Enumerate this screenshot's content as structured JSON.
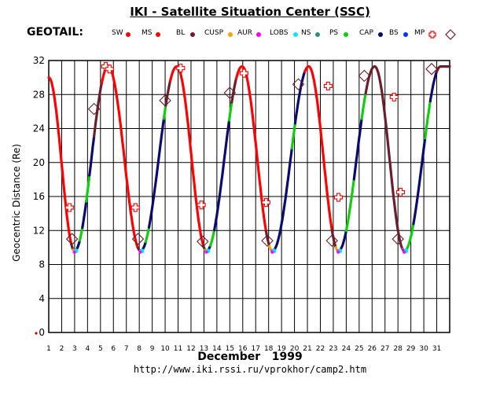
{
  "header": {
    "title": "IKI - Satellite Situation Center (SSC)",
    "satellite": "GEOTAIL:"
  },
  "legend": [
    {
      "label": "SW",
      "color": "#ff0000",
      "marker": "dot"
    },
    {
      "label": "MS",
      "color": "#ff0000",
      "marker": "dot"
    },
    {
      "label": "BL",
      "color": "#6b1e2c",
      "marker": "dot"
    },
    {
      "label": "CUSP",
      "color": "#ffa500",
      "marker": "dot"
    },
    {
      "label": "AUR",
      "color": "#ff00ff",
      "marker": "dot"
    },
    {
      "label": "LOBS",
      "color": "#00e5ff",
      "marker": "dot"
    },
    {
      "label": "NS",
      "color": "#2a8c8c",
      "marker": "dot"
    },
    {
      "label": "PS",
      "color": "#11cc11",
      "marker": "dot"
    },
    {
      "label": "CAP",
      "color": "#0b0b6e",
      "marker": "dot"
    },
    {
      "label": "BS",
      "color": "#0033ff",
      "marker": "dot"
    },
    {
      "label": "MP",
      "color": "#ff0000",
      "marker": "cross"
    },
    {
      "label": "",
      "color": "#6b1e2c",
      "marker": "diamond"
    }
  ],
  "footer": {
    "month": "December   1999",
    "url": "http://www.iki.rssi.ru/vprokhor/camp2.htm"
  },
  "chart_data": {
    "type": "line",
    "ylabel": "Geocentric Distance (Re)",
    "xlabel": "December 1999",
    "ylim": [
      0,
      32
    ],
    "xlim": [
      1,
      32
    ],
    "yticks": [
      "0",
      "4",
      "8",
      "12",
      "16",
      "20",
      "24",
      "28",
      "32"
    ],
    "xticks": [
      "1",
      "2",
      "3",
      "4",
      "5",
      "6",
      "7",
      "8",
      "9",
      "10",
      "11",
      "12",
      "13",
      "14",
      "15",
      "16",
      "17",
      "18",
      "19",
      "20",
      "21",
      "22",
      "23",
      "24",
      "25",
      "26",
      "27",
      "28",
      "29",
      "30",
      "31"
    ],
    "grid": true,
    "colors": {
      "MS": "#ff0000",
      "BL": "#6b1e2c",
      "CUSP": "#ffa500",
      "AUR": "#ff00ff",
      "LOBS": "#00e5ff",
      "PS": "#11cc11",
      "CAP": "#0b0b6e",
      "BS": "#0033ff"
    },
    "orbit": {
      "perigee_days": [
        3.0,
        8.1,
        13.2,
        18.3,
        23.4,
        28.5
      ],
      "perigee_re": 9.6,
      "apogee_days": [
        5.6,
        10.9,
        15.95,
        21.1,
        26.2,
        31.3
      ],
      "apogee_re": 31.3,
      "start": {
        "day": 1.0,
        "re": 30.0
      }
    },
    "segments": [
      {
        "from": 1.0,
        "to": 2.75,
        "region": "MS"
      },
      {
        "from": 2.75,
        "to": 2.9,
        "region": "BL"
      },
      {
        "from": 2.9,
        "to": 3.0,
        "region": "CUSP"
      },
      {
        "from": 3.0,
        "to": 3.05,
        "region": "AUR"
      },
      {
        "from": 3.05,
        "to": 3.2,
        "region": "PS"
      },
      {
        "from": 3.2,
        "to": 3.4,
        "region": "CAP"
      },
      {
        "from": 3.4,
        "to": 3.6,
        "region": "PS"
      },
      {
        "from": 3.6,
        "to": 3.9,
        "region": "CAP"
      },
      {
        "from": 3.9,
        "to": 4.15,
        "region": "PS"
      },
      {
        "from": 4.15,
        "to": 4.5,
        "region": "CAP"
      },
      {
        "from": 4.5,
        "to": 5.1,
        "region": "BL"
      },
      {
        "from": 5.1,
        "to": 7.9,
        "region": "MS"
      },
      {
        "from": 7.9,
        "to": 8.05,
        "region": "BL"
      },
      {
        "from": 8.05,
        "to": 8.15,
        "region": "AUR"
      },
      {
        "from": 8.15,
        "to": 8.5,
        "region": "CAP"
      },
      {
        "from": 8.5,
        "to": 8.75,
        "region": "PS"
      },
      {
        "from": 8.75,
        "to": 9.9,
        "region": "CAP"
      },
      {
        "from": 9.9,
        "to": 10.05,
        "region": "PS"
      },
      {
        "from": 10.05,
        "to": 10.4,
        "region": "BL"
      },
      {
        "from": 10.4,
        "to": 12.95,
        "region": "MS"
      },
      {
        "from": 12.95,
        "to": 13.1,
        "region": "BL"
      },
      {
        "from": 13.1,
        "to": 13.2,
        "region": "CUSP"
      },
      {
        "from": 13.2,
        "to": 13.3,
        "region": "AUR"
      },
      {
        "from": 13.3,
        "to": 13.5,
        "region": "CAP"
      },
      {
        "from": 13.5,
        "to": 13.8,
        "region": "PS"
      },
      {
        "from": 13.8,
        "to": 14.95,
        "region": "CAP"
      },
      {
        "from": 14.95,
        "to": 15.15,
        "region": "PS"
      },
      {
        "from": 15.15,
        "to": 15.5,
        "region": "BL"
      },
      {
        "from": 15.5,
        "to": 17.8,
        "region": "MS"
      },
      {
        "from": 17.8,
        "to": 18.05,
        "region": "BL"
      },
      {
        "from": 18.05,
        "to": 18.25,
        "region": "CUSP"
      },
      {
        "from": 18.25,
        "to": 18.35,
        "region": "AUR"
      },
      {
        "from": 18.35,
        "to": 19.8,
        "region": "CAP"
      },
      {
        "from": 19.8,
        "to": 20.05,
        "region": "PS"
      },
      {
        "from": 20.05,
        "to": 20.8,
        "region": "CAP"
      },
      {
        "from": 20.8,
        "to": 22.9,
        "region": "MS"
      },
      {
        "from": 22.9,
        "to": 23.2,
        "region": "BL"
      },
      {
        "from": 23.2,
        "to": 23.35,
        "region": "CUSP"
      },
      {
        "from": 23.35,
        "to": 23.45,
        "region": "AUR"
      },
      {
        "from": 23.45,
        "to": 24.0,
        "region": "CAP"
      },
      {
        "from": 24.0,
        "to": 24.6,
        "region": "PS"
      },
      {
        "from": 24.6,
        "to": 25.2,
        "region": "CAP"
      },
      {
        "from": 25.2,
        "to": 25.5,
        "region": "PS"
      },
      {
        "from": 25.5,
        "to": 28.35,
        "region": "BL"
      },
      {
        "from": 28.35,
        "to": 28.45,
        "region": "AUR"
      },
      {
        "from": 28.45,
        "to": 28.6,
        "region": "CAP"
      },
      {
        "from": 28.6,
        "to": 29.2,
        "region": "PS"
      },
      {
        "from": 29.2,
        "to": 30.1,
        "region": "CAP"
      },
      {
        "from": 30.1,
        "to": 30.5,
        "region": "PS"
      },
      {
        "from": 30.5,
        "to": 31.0,
        "region": "CAP"
      },
      {
        "from": 31.0,
        "to": 32.0,
        "region": "BL"
      }
    ],
    "bs_points": [
      {
        "day": 3.1,
        "re": 9.6
      },
      {
        "day": 8.2,
        "re": 9.6
      },
      {
        "day": 13.3,
        "re": 9.6
      },
      {
        "day": 18.4,
        "re": 9.6
      },
      {
        "day": 23.5,
        "re": 9.6
      },
      {
        "day": 28.6,
        "re": 9.6
      }
    ],
    "mp_crossings": [
      {
        "day": 2.6,
        "re": 14.7
      },
      {
        "day": 5.4,
        "re": 31.3
      },
      {
        "day": 5.7,
        "re": 31.0
      },
      {
        "day": 7.7,
        "re": 14.7
      },
      {
        "day": 11.2,
        "re": 31.1
      },
      {
        "day": 12.8,
        "re": 15.0
      },
      {
        "day": 16.1,
        "re": 30.5
      },
      {
        "day": 17.8,
        "re": 15.3
      },
      {
        "day": 22.6,
        "re": 29.0
      },
      {
        "day": 23.4,
        "re": 15.9
      },
      {
        "day": 27.7,
        "re": 27.7
      },
      {
        "day": 28.2,
        "re": 16.5
      }
    ],
    "bl_crossings": [
      {
        "day": 2.8,
        "re": 11.0
      },
      {
        "day": 4.5,
        "re": 26.3
      },
      {
        "day": 7.9,
        "re": 11.0
      },
      {
        "day": 10.0,
        "re": 27.3
      },
      {
        "day": 12.9,
        "re": 10.7
      },
      {
        "day": 15.0,
        "re": 28.2
      },
      {
        "day": 17.9,
        "re": 10.8
      },
      {
        "day": 20.3,
        "re": 29.2
      },
      {
        "day": 22.9,
        "re": 10.8
      },
      {
        "day": 25.4,
        "re": 30.2
      },
      {
        "day": 28.0,
        "re": 11.0
      },
      {
        "day": 30.6,
        "re": 31.0
      }
    ]
  }
}
